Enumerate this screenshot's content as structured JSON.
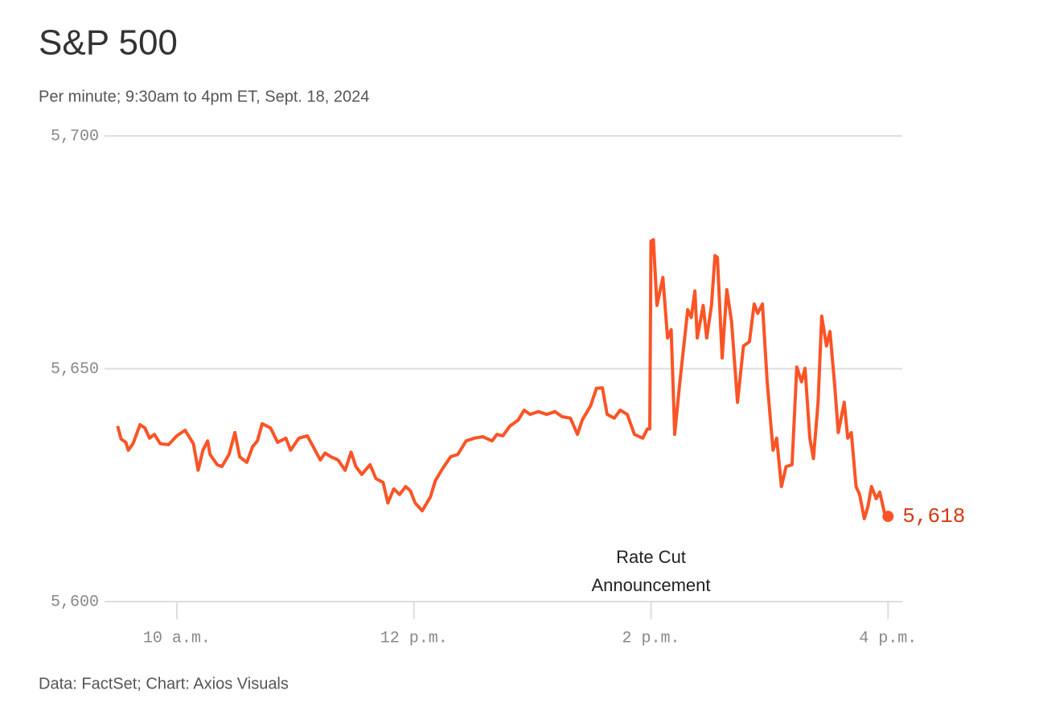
{
  "chart_data": {
    "type": "line",
    "title": "S&P 500",
    "subtitle": "Per minute; 9:30am to 4pm ET, Sept. 18, 2024",
    "source": "Data: FactSet; Chart: Axios Visuals",
    "x": [
      9.5,
      9.53,
      9.57,
      9.59,
      9.63,
      9.69,
      9.73,
      9.77,
      9.81,
      9.86,
      9.93,
      10.0,
      10.07,
      10.14,
      10.18,
      10.22,
      10.26,
      10.28,
      10.34,
      10.38,
      10.44,
      10.49,
      10.53,
      10.59,
      10.64,
      10.68,
      10.72,
      10.79,
      10.85,
      10.92,
      10.96,
      11.03,
      11.1,
      11.15,
      11.21,
      11.25,
      11.3,
      11.36,
      11.42,
      11.47,
      11.51,
      11.56,
      11.63,
      11.68,
      11.74,
      11.78,
      11.83,
      11.88,
      11.93,
      11.97,
      12.01,
      12.07,
      12.14,
      12.18,
      12.24,
      12.31,
      12.37,
      12.44,
      12.51,
      12.58,
      12.66,
      12.7,
      12.75,
      12.81,
      12.88,
      12.93,
      12.98,
      13.05,
      13.12,
      13.19,
      13.25,
      13.32,
      13.38,
      13.42,
      13.49,
      13.54,
      13.59,
      13.63,
      13.69,
      13.74,
      13.8,
      13.86,
      13.93,
      13.97,
      13.99,
      14.0,
      14.02,
      14.05,
      14.1,
      14.14,
      14.17,
      14.2,
      14.24,
      14.31,
      14.34,
      14.37,
      14.39,
      14.44,
      14.47,
      14.51,
      14.54,
      14.56,
      14.6,
      14.64,
      14.68,
      14.73,
      14.78,
      14.83,
      14.87,
      14.9,
      14.94,
      14.98,
      15.03,
      15.06,
      15.1,
      15.14,
      15.19,
      15.23,
      15.27,
      15.3,
      15.34,
      15.37,
      15.41,
      15.44,
      15.48,
      15.51,
      15.55,
      15.58,
      15.63,
      15.66,
      15.69,
      15.73,
      15.76,
      15.8,
      15.83,
      15.86,
      15.9,
      15.93,
      15.97,
      16.0
    ],
    "series": [
      {
        "name": "S&P 500",
        "color": "#fa5426",
        "end_label": "5,618",
        "values": [
          5637.7,
          5634.9,
          5634.2,
          5632.5,
          5633.9,
          5638.0,
          5637.3,
          5635.1,
          5635.9,
          5633.9,
          5633.7,
          5635.6,
          5636.8,
          5633.9,
          5628.2,
          5632.5,
          5634.5,
          5631.6,
          5629.4,
          5629.0,
          5631.6,
          5636.3,
          5631.1,
          5629.9,
          5633.3,
          5634.5,
          5638.2,
          5637.3,
          5634.2,
          5635.1,
          5632.5,
          5635.1,
          5635.6,
          5633.3,
          5630.4,
          5631.9,
          5631.1,
          5630.4,
          5628.2,
          5632.1,
          5629.0,
          5627.3,
          5629.4,
          5626.4,
          5625.6,
          5621.2,
          5624.2,
          5623.0,
          5624.7,
          5623.8,
          5621.2,
          5619.5,
          5622.5,
          5625.9,
          5628.5,
          5631.1,
          5631.6,
          5634.5,
          5635.1,
          5635.4,
          5634.5,
          5635.9,
          5635.6,
          5637.7,
          5639.0,
          5641.1,
          5640.2,
          5640.8,
          5640.2,
          5640.8,
          5639.7,
          5639.4,
          5635.9,
          5639.0,
          5642.0,
          5645.8,
          5645.9,
          5640.2,
          5639.4,
          5641.1,
          5640.2,
          5635.9,
          5635.1,
          5637.1,
          5637.1,
          5677.4,
          5677.7,
          5663.6,
          5669.6,
          5656.6,
          5658.4,
          5635.9,
          5646.3,
          5662.7,
          5661.0,
          5666.7,
          5656.6,
          5663.6,
          5656.6,
          5663.6,
          5674.3,
          5673.9,
          5652.3,
          5667.0,
          5660.1,
          5642.8,
          5654.9,
          5655.8,
          5663.9,
          5661.9,
          5663.9,
          5647.2,
          5632.5,
          5635.1,
          5624.7,
          5629.0,
          5629.4,
          5650.4,
          5647.2,
          5650.1,
          5635.1,
          5630.7,
          5642.8,
          5661.3,
          5654.9,
          5658.0,
          5646.3,
          5636.3,
          5642.8,
          5635.1,
          5636.3,
          5624.7,
          5623.0,
          5617.8,
          5620.4,
          5624.7,
          5622.1,
          5623.5,
          5619.0,
          5618.3
        ]
      }
    ],
    "xlim": [
      9.39,
      16.12
    ],
    "xticks": [
      {
        "value": 10,
        "label": "10 a.m."
      },
      {
        "value": 12,
        "label": "12 p.m."
      },
      {
        "value": 14,
        "label": "2 p.m."
      },
      {
        "value": 16,
        "label": "4 p.m."
      }
    ],
    "ylim": [
      5600,
      5700
    ],
    "yticks": [
      {
        "value": 5600,
        "label": "5,600"
      },
      {
        "value": 5650,
        "label": "5,650"
      },
      {
        "value": 5700,
        "label": "5,700"
      }
    ],
    "grid": true,
    "annotations": [
      {
        "x": 14,
        "lines": [
          "Rate Cut",
          "Announcement"
        ]
      }
    ]
  }
}
